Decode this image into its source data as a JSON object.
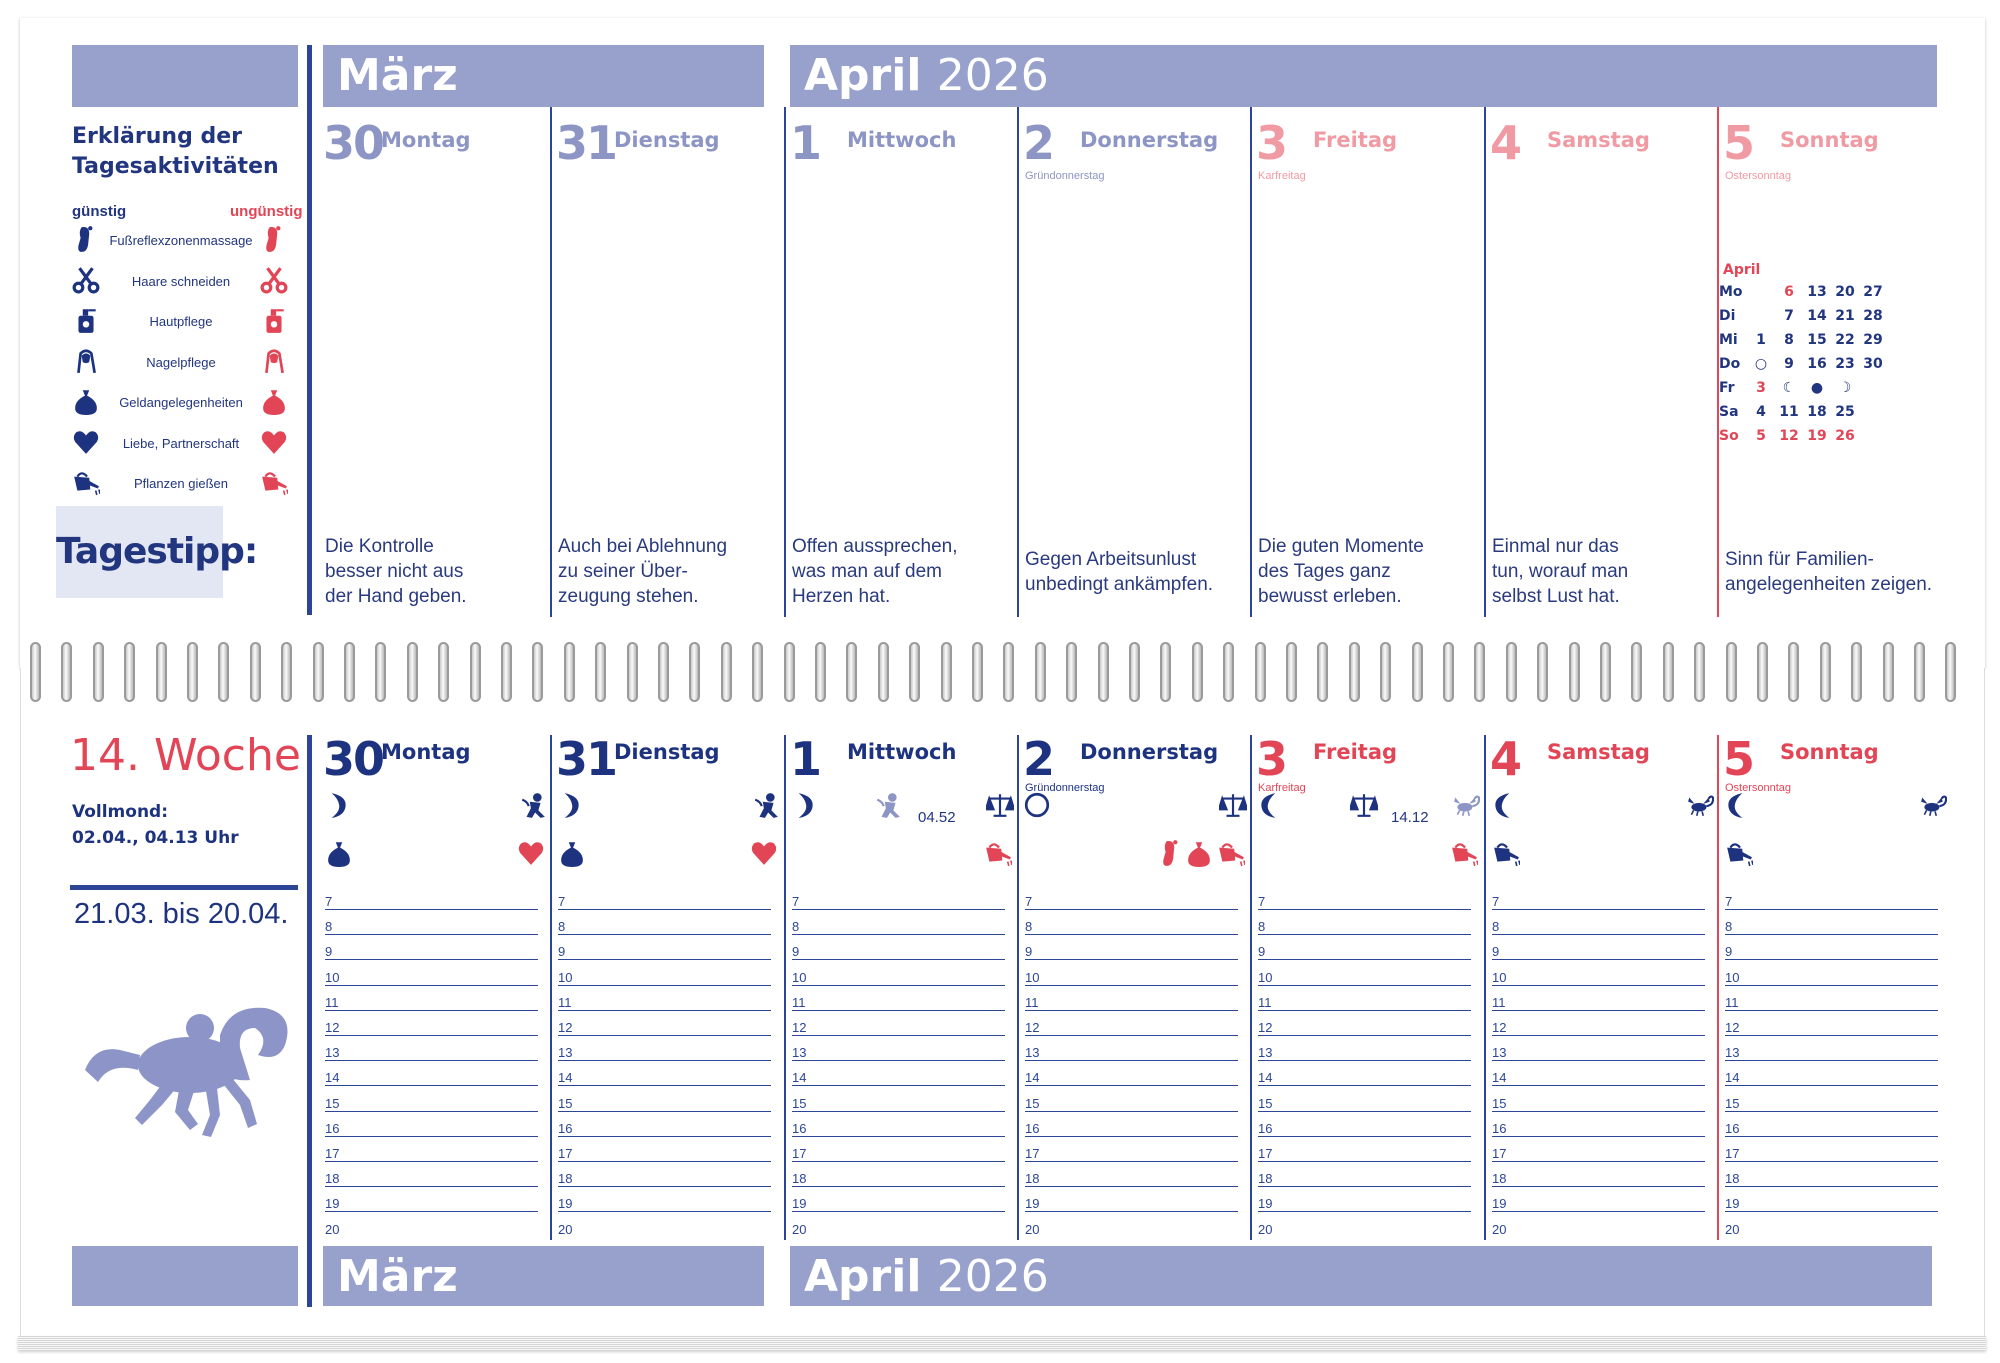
{
  "colors": {
    "blue_dark": "#1e3380",
    "blue_light": "#98a0cc",
    "red": "#e14556",
    "red_light": "#f09aa3"
  },
  "top": {
    "month_left": "März",
    "month_right": "April",
    "year": "2026",
    "legend": {
      "title": "Erklärung der Tagesaktivitäten",
      "favorable": "günstig",
      "unfavorable": "ungünstig",
      "items": [
        {
          "label": "Fußreflexzonenmassage",
          "icon": "foot-icon"
        },
        {
          "label": "Haare schneiden",
          "icon": "scissors-icon"
        },
        {
          "label": "Hautpflege",
          "icon": "lotion-bottle-icon"
        },
        {
          "label": "Nagelpflege",
          "icon": "nail-icon"
        },
        {
          "label": "Geldangelegenheiten",
          "icon": "money-bag-icon"
        },
        {
          "label": "Liebe, Partnerschaft",
          "icon": "heart-icon"
        },
        {
          "label": "Pflanzen gießen",
          "icon": "watering-can-icon"
        }
      ]
    },
    "tip_label": "Tagestipp:",
    "days": [
      {
        "num": "30",
        "name": "Montag",
        "sub": "",
        "tip": [
          "Die Kontrolle",
          "besser nicht aus",
          "der Hand geben."
        ]
      },
      {
        "num": "31",
        "name": "Dienstag",
        "sub": "",
        "tip": [
          "Auch bei Ablehnung",
          "zu seiner Über-",
          "zeugung stehen."
        ]
      },
      {
        "num": "1",
        "name": "Mittwoch",
        "sub": "",
        "tip": [
          "Offen aussprechen,",
          "was man auf dem",
          "Herzen hat."
        ]
      },
      {
        "num": "2",
        "name": "Donnerstag",
        "sub": "Gründonnerstag",
        "tip": [
          "Gegen Arbeitsunlust",
          "unbedingt ankämpfen."
        ]
      },
      {
        "num": "3",
        "name": "Freitag",
        "sub": "Karfreitag",
        "tip": [
          "Die guten Momente",
          "des Tages ganz",
          "bewusst erleben."
        ]
      },
      {
        "num": "4",
        "name": "Samstag",
        "sub": "",
        "tip": [
          "Einmal nur das",
          "tun, worauf man",
          "selbst Lust hat."
        ]
      },
      {
        "num": "5",
        "name": "Sonntag",
        "sub": "Ostersonntag",
        "tip": [
          "Sinn für Familien-",
          "angelegenheiten zeigen."
        ]
      }
    ],
    "mini_cal": {
      "month": "April",
      "rows": [
        {
          "day": "Mo",
          "cells": [
            "",
            "6",
            "13",
            "20",
            "27"
          ]
        },
        {
          "day": "Di",
          "cells": [
            "",
            "7",
            "14",
            "21",
            "28"
          ]
        },
        {
          "day": "Mi",
          "cells": [
            "1",
            "8",
            "15",
            "22",
            "29"
          ]
        },
        {
          "day": "Do",
          "cells": [
            "○",
            "9",
            "16",
            "23",
            "30"
          ]
        },
        {
          "day": "Fr",
          "cells": [
            "3",
            "☾",
            "●",
            "☽",
            ""
          ]
        },
        {
          "day": "Sa",
          "cells": [
            "4",
            "11",
            "18",
            "25",
            ""
          ]
        },
        {
          "day": "So",
          "cells": [
            "5",
            "12",
            "19",
            "26",
            ""
          ]
        }
      ]
    }
  },
  "bottom": {
    "week": "14. Woche",
    "full_moon_label": "Vollmond:",
    "full_moon_date": "02.04., 04.13 Uhr",
    "zodiac_range": "21.03. bis 20.04.",
    "zodiac_icon": "ram-icon",
    "month_left": "März",
    "month_right": "April",
    "year": "2026",
    "hours": [
      "7",
      "8",
      "9",
      "10",
      "11",
      "12",
      "13",
      "14",
      "15",
      "16",
      "17",
      "18",
      "19",
      "20"
    ],
    "days": [
      {
        "num": "30",
        "name": "Montag",
        "sub": "",
        "time": ""
      },
      {
        "num": "31",
        "name": "Dienstag",
        "sub": "",
        "time": ""
      },
      {
        "num": "1",
        "name": "Mittwoch",
        "sub": "",
        "time": "04.52"
      },
      {
        "num": "2",
        "name": "Donnerstag",
        "sub": "Gründonnerstag",
        "time": ""
      },
      {
        "num": "3",
        "name": "Freitag",
        "sub": "Karfreitag",
        "time": "14.12"
      },
      {
        "num": "4",
        "name": "Samstag",
        "sub": "",
        "time": ""
      },
      {
        "num": "5",
        "name": "Sonntag",
        "sub": "Ostersonntag",
        "time": ""
      }
    ]
  }
}
